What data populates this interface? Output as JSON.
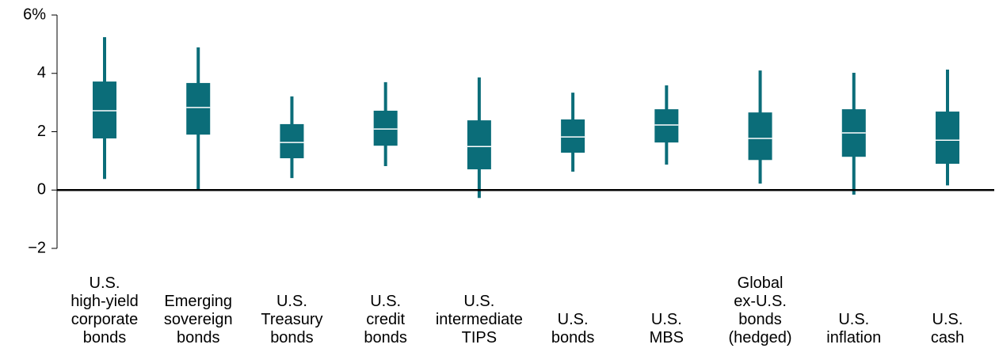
{
  "chart_data": {
    "type": "box",
    "categories": [
      "U.S.\nhigh-yield\ncorporate\nbonds",
      "Emerging\nsovereign\nbonds",
      "U.S.\nTreasury\nbonds",
      "U.S.\ncredit\nbonds",
      "U.S.\nintermediate\nTIPS",
      "U.S.\nbonds",
      "U.S.\nMBS",
      "Global\nex-U.S.\nbonds\n(hedged)",
      "U.S.\ninflation",
      "U.S.\ncash"
    ],
    "boxes": [
      {
        "low": 0.38,
        "q1": 1.77,
        "median": 2.72,
        "q3": 3.72,
        "high": 5.24
      },
      {
        "low": 0.0,
        "q1": 1.9,
        "median": 2.83,
        "q3": 3.67,
        "high": 4.89
      },
      {
        "low": 0.41,
        "q1": 1.09,
        "median": 1.63,
        "q3": 2.26,
        "high": 3.21
      },
      {
        "low": 0.82,
        "q1": 1.52,
        "median": 2.09,
        "q3": 2.72,
        "high": 3.7
      },
      {
        "low": -0.27,
        "q1": 0.71,
        "median": 1.49,
        "q3": 2.39,
        "high": 3.86
      },
      {
        "low": 0.63,
        "q1": 1.28,
        "median": 1.82,
        "q3": 2.42,
        "high": 3.34
      },
      {
        "low": 0.87,
        "q1": 1.63,
        "median": 2.23,
        "q3": 2.77,
        "high": 3.59
      },
      {
        "low": 0.22,
        "q1": 1.03,
        "median": 1.77,
        "q3": 2.66,
        "high": 4.1
      },
      {
        "low": -0.16,
        "q1": 1.14,
        "median": 1.96,
        "q3": 2.77,
        "high": 4.02
      },
      {
        "low": 0.16,
        "q1": 0.9,
        "median": 1.71,
        "q3": 2.69,
        "high": 4.13
      }
    ],
    "color": "#0b6d79",
    "ylim": [
      -2,
      6
    ],
    "yticks": [
      {
        "value": -2,
        "label": "−2"
      },
      0,
      2,
      4,
      {
        "value": 6,
        "label": "6%"
      }
    ]
  }
}
